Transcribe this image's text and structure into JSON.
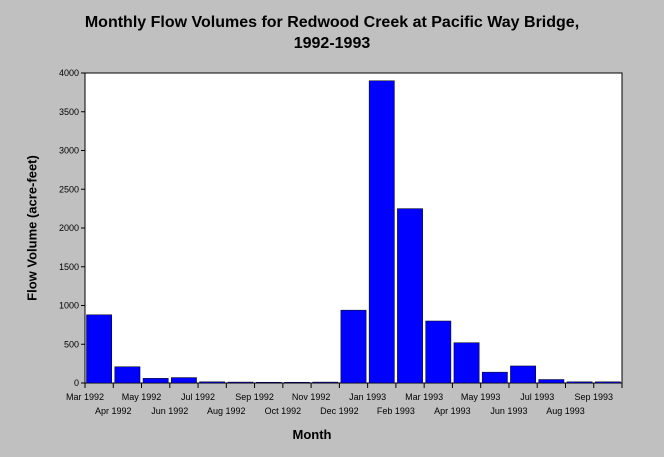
{
  "chart_data": {
    "type": "bar",
    "title": "Monthly Flow Volumes for Redwood Creek at Pacific Way Bridge,",
    "subtitle": "1992-1993",
    "xlabel": "Month",
    "ylabel": "Flow Volume (acre-feet)",
    "ylim": [
      0,
      4000
    ],
    "yticks": [
      "0",
      "500",
      "1000",
      "1500",
      "2000",
      "2500",
      "3000",
      "3500",
      "4000"
    ],
    "categories": [
      "Mar 1992",
      "Apr 1992",
      "May 1992",
      "Jun 1992",
      "Jul 1992",
      "Aug 1992",
      "Sep 1992",
      "Oct 1992",
      "Nov 1992",
      "Dec 1992",
      "Jan 1993",
      "Feb 1993",
      "Mar 1993",
      "Apr 1993",
      "May 1993",
      "Jun 1993",
      "Jul 1993",
      "Aug 1993",
      "Sep 1993"
    ],
    "values": [
      880,
      210,
      60,
      70,
      15,
      12,
      10,
      10,
      12,
      940,
      3900,
      2250,
      800,
      520,
      140,
      220,
      45,
      15,
      15
    ],
    "bar_color": "#0000ff",
    "grid": false,
    "legend": "none"
  }
}
